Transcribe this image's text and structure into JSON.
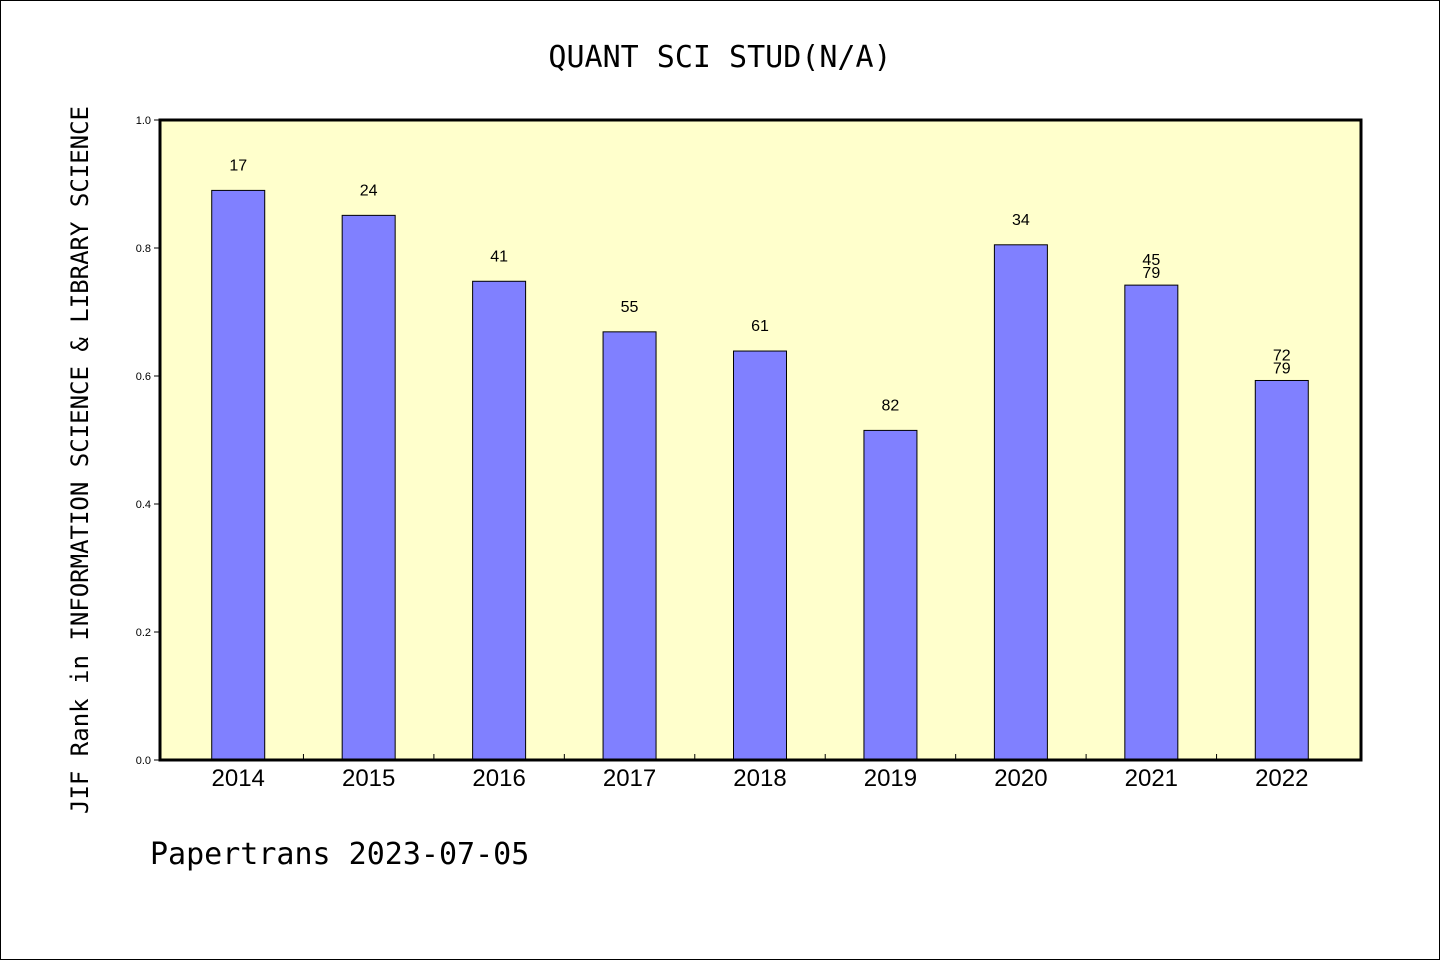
{
  "chart_data": {
    "type": "bar",
    "title": "QUANT SCI STUD(N/A)",
    "xlabel": "",
    "ylabel": "JIF Rank in INFORMATION SCIENCE & LIBRARY SCIENCE",
    "categories": [
      "2014",
      "2015",
      "2016",
      "2017",
      "2018",
      "2019",
      "2020",
      "2021",
      "2022"
    ],
    "values": [
      0.89,
      0.851,
      0.748,
      0.669,
      0.639,
      0.515,
      0.805,
      0.742,
      0.593
    ],
    "ranks": [
      17,
      24,
      41,
      55,
      61,
      82,
      34,
      45,
      72
    ],
    "totals": [
      null,
      null,
      null,
      null,
      null,
      null,
      null,
      79,
      79
    ],
    "ylim": [
      0,
      1
    ],
    "yticks": [
      "0.0",
      "0.2",
      "0.4",
      "0.6",
      "0.8",
      "1.0"
    ],
    "grid": false,
    "colors": {
      "plot_bg": "#ffffcc",
      "bar": "#8080ff",
      "bar_edge": "#000000"
    }
  },
  "footer": "Papertrans 2023-07-05"
}
